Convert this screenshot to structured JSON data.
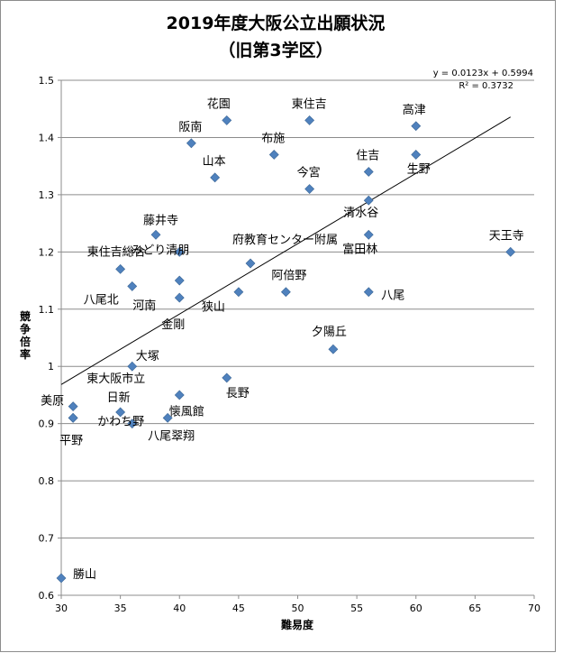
{
  "chart_data": {
    "type": "scatter",
    "title": "2019年度大阪公立出願状況",
    "subtitle": "（旧第3学区）",
    "xlabel": "難易度",
    "ylabel": "競争倍率",
    "xlim": [
      30,
      70
    ],
    "ylim": [
      0.6,
      1.5
    ],
    "x_ticks": [
      "30",
      "35",
      "40",
      "45",
      "50",
      "55",
      "60",
      "65",
      "70"
    ],
    "y_ticks": [
      "0.6",
      "0.7",
      "0.8",
      "0.9",
      "1",
      "1.1",
      "1.2",
      "1.3",
      "1.4",
      "1.5"
    ],
    "grid": true,
    "marker_color": "#4f81bd",
    "trendline": {
      "equation": "y = 0.0123x + 0.5994",
      "r_squared": "R² = 0.3732",
      "slope": 0.0123,
      "intercept": 0.5994,
      "x_range": [
        30,
        68
      ]
    },
    "points": [
      {
        "name": "花園",
        "x": 44,
        "y": 1.43
      },
      {
        "name": "東住吉",
        "x": 51,
        "y": 1.43
      },
      {
        "name": "高津",
        "x": 60,
        "y": 1.42
      },
      {
        "name": "阪南",
        "x": 41,
        "y": 1.39
      },
      {
        "name": "布施",
        "x": 48,
        "y": 1.37
      },
      {
        "name": "住吉",
        "x": 56,
        "y": 1.34
      },
      {
        "name": "生野",
        "x": 60,
        "y": 1.37
      },
      {
        "name": "山本",
        "x": 43,
        "y": 1.33
      },
      {
        "name": "今宮",
        "x": 51,
        "y": 1.31
      },
      {
        "name": "清水谷",
        "x": 56,
        "y": 1.29
      },
      {
        "name": "藤井寺",
        "x": 38,
        "y": 1.23
      },
      {
        "name": "府教育センター附属",
        "x": 46,
        "y": 1.18
      },
      {
        "name": "富田林",
        "x": 56,
        "y": 1.23
      },
      {
        "name": "天王寺",
        "x": 68,
        "y": 1.2
      },
      {
        "name": "東住吉総合",
        "x": 35,
        "y": 1.17
      },
      {
        "name": "みどり清朋",
        "x": 40,
        "y": 1.2
      },
      {
        "name": "八尾北",
        "x": 36,
        "y": 1.14
      },
      {
        "name": "阿倍野",
        "x": 49,
        "y": 1.13
      },
      {
        "name": "八尾",
        "x": 56,
        "y": 1.13
      },
      {
        "name": "狭山",
        "x": 45,
        "y": 1.13
      },
      {
        "name": "河南",
        "x": 40,
        "y": 1.15
      },
      {
        "name": "金剛",
        "x": 40,
        "y": 1.12
      },
      {
        "name": "夕陽丘",
        "x": 53,
        "y": 1.03
      },
      {
        "name": "大塚",
        "x": 36,
        "y": 1.0
      },
      {
        "name": "東大阪市立",
        "x": 40,
        "y": 0.95
      },
      {
        "name": "長野",
        "x": 44,
        "y": 0.98
      },
      {
        "name": "美原",
        "x": 31,
        "y": 0.93
      },
      {
        "name": "日新",
        "x": 35,
        "y": 0.92
      },
      {
        "name": "懐風館",
        "x": 36,
        "y": 0.9
      },
      {
        "name": "かわち野",
        "x": 31,
        "y": 0.91
      },
      {
        "name": "平野",
        "x": 31,
        "y": 0.91
      },
      {
        "name": "八尾翠翔",
        "x": 39,
        "y": 0.91
      },
      {
        "name": "勝山",
        "x": 30,
        "y": 0.63
      }
    ]
  }
}
